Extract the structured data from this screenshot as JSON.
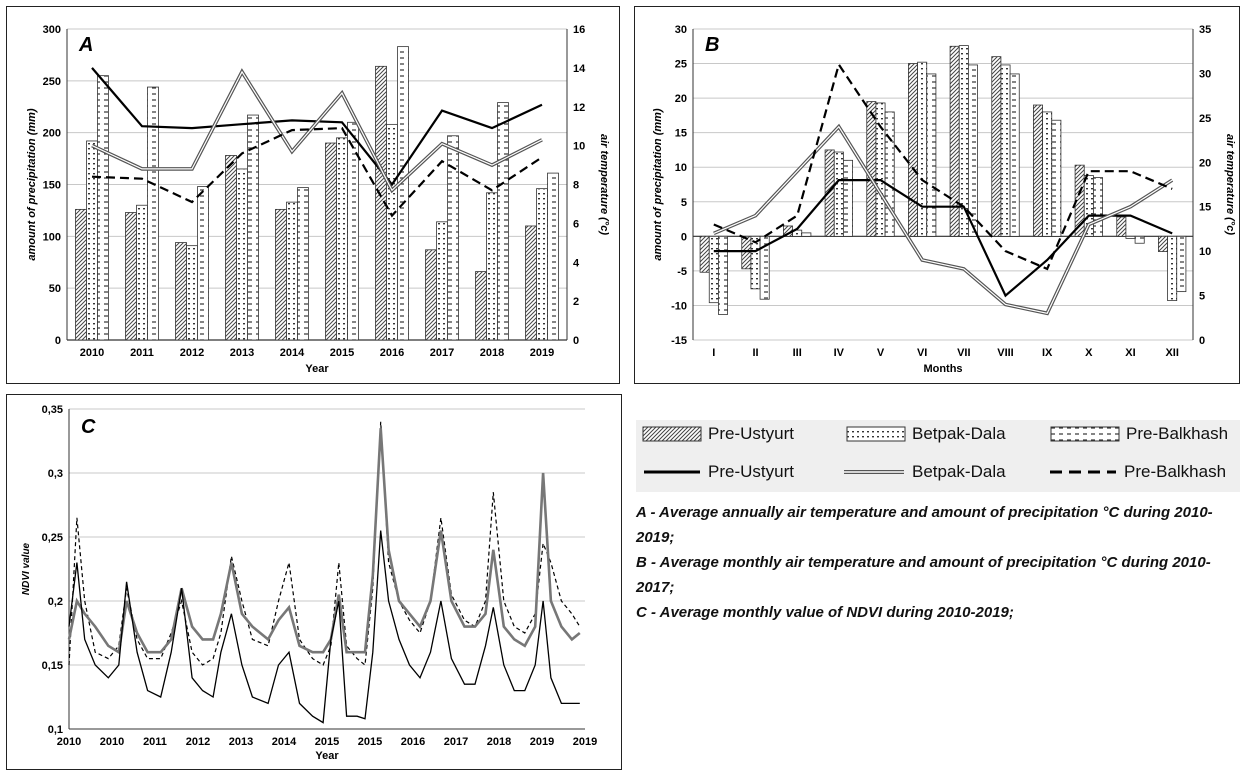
{
  "chart_data": [
    {
      "type": "bar",
      "panel_label": "A",
      "xlabel": "Year",
      "ylabel": "amount of precipitation (mm)",
      "y2label": "air temperature (°c)",
      "ylim": [
        0,
        300
      ],
      "y2lim": [
        0,
        16
      ],
      "yticks": [
        "0",
        "50",
        "100",
        "150",
        "200",
        "250",
        "300"
      ],
      "y2ticks": [
        "0",
        "2",
        "4",
        "6",
        "8",
        "10",
        "12",
        "14",
        "16"
      ],
      "categories": [
        "2010",
        "2011",
        "2012",
        "2013",
        "2014",
        "2015",
        "2016",
        "2017",
        "2018",
        "2019"
      ],
      "grid": true,
      "bar_series": [
        {
          "name": "Pre-Ustyurt",
          "values": [
            126,
            123,
            94,
            178,
            126,
            190,
            264,
            87,
            66,
            110
          ]
        },
        {
          "name": "Betpak-Dala",
          "values": [
            192,
            130,
            91,
            165,
            133,
            195,
            208,
            114,
            142,
            146
          ]
        },
        {
          "name": "Pre-Balkhash",
          "values": [
            255,
            244,
            148,
            217,
            147,
            210,
            283,
            197,
            229,
            161
          ]
        }
      ],
      "line_series": [
        {
          "name": "Pre-Ustyurt",
          "values": [
            14.0,
            11.0,
            10.9,
            11.1,
            11.3,
            11.2,
            8.0,
            11.8,
            10.9,
            12.1
          ]
        },
        {
          "name": "Betpak-Dala",
          "values": [
            10.0,
            8.8,
            8.8,
            13.8,
            9.7,
            12.7,
            7.7,
            10.1,
            9.0,
            10.3
          ]
        },
        {
          "name": "Pre-Balkhash",
          "values": [
            8.4,
            8.3,
            7.1,
            9.6,
            10.8,
            10.9,
            6.4,
            9.2,
            7.7,
            9.4
          ]
        }
      ]
    },
    {
      "type": "bar",
      "panel_label": "B",
      "xlabel": "Months",
      "ylabel": "amount of precipitation (mm)",
      "y2label": "air temperature (°c)",
      "ylim": [
        -15,
        30
      ],
      "y2lim": [
        0,
        35
      ],
      "yticks": [
        "-15",
        "-10",
        "-5",
        "0",
        "5",
        "10",
        "15",
        "20",
        "25",
        "30"
      ],
      "y2ticks": [
        "0",
        "5",
        "10",
        "15",
        "20",
        "25",
        "30",
        "35"
      ],
      "categories": [
        "I",
        "II",
        "III",
        "IV",
        "V",
        "VI",
        "VII",
        "VIII",
        "IX",
        "X",
        "XI",
        "XII"
      ],
      "grid": true,
      "bar_series": [
        {
          "name": "Pre-Ustyurt",
          "values": [
            -5.2,
            -4.7,
            1.5,
            12.5,
            19.5,
            25,
            27.5,
            26,
            19,
            10.3,
            2.8,
            -2.2
          ]
        },
        {
          "name": "Betpak-Dala",
          "values": [
            -9.6,
            -7.6,
            0.9,
            12.2,
            19.3,
            25.2,
            27.6,
            24.8,
            18,
            8.8,
            -0.3,
            -9.3
          ]
        },
        {
          "name": "Pre-Balkhash",
          "values": [
            -11.3,
            -9.1,
            0.5,
            11,
            18,
            23.5,
            24.8,
            23.5,
            16.8,
            8.5,
            -1,
            -8
          ]
        }
      ],
      "line_series": [
        {
          "name": "Pre-Ustyurt",
          "values": [
            10,
            10,
            12.5,
            18,
            18,
            15,
            15,
            5,
            9,
            14,
            14,
            12
          ]
        },
        {
          "name": "Betpak-Dala",
          "values": [
            12,
            14,
            19,
            24,
            16.5,
            9,
            8,
            4,
            3,
            13,
            15,
            18
          ]
        },
        {
          "name": "Pre-Balkhash",
          "values": [
            13,
            11,
            14,
            31,
            24,
            18,
            15,
            10,
            8,
            19,
            19,
            17
          ]
        }
      ]
    },
    {
      "type": "line",
      "panel_label": "C",
      "xlabel": "Year",
      "ylabel": "NDVI value",
      "ylim": [
        0.1,
        0.35
      ],
      "yticks": [
        "0,1",
        "0,15",
        "0,2",
        "0,25",
        "0,3",
        "0,35"
      ],
      "xticks": [
        "2010",
        "2010",
        "2011",
        "2012",
        "2013",
        "2014",
        "2015",
        "2015",
        "2016",
        "2017",
        "2018",
        "2019",
        "2019"
      ],
      "grid": true,
      "series": [
        {
          "name": "Pre-Ustyurt",
          "points": [
            [
              2010.0,
              0.18
            ],
            [
              2010.15,
              0.23
            ],
            [
              2010.3,
              0.17
            ],
            [
              2010.5,
              0.15
            ],
            [
              2010.75,
              0.14
            ],
            [
              2010.95,
              0.15
            ],
            [
              2011.1,
              0.215
            ],
            [
              2011.3,
              0.16
            ],
            [
              2011.5,
              0.13
            ],
            [
              2011.75,
              0.125
            ],
            [
              2011.95,
              0.16
            ],
            [
              2012.15,
              0.21
            ],
            [
              2012.35,
              0.14
            ],
            [
              2012.55,
              0.13
            ],
            [
              2012.75,
              0.125
            ],
            [
              2012.9,
              0.16
            ],
            [
              2013.1,
              0.19
            ],
            [
              2013.3,
              0.15
            ],
            [
              2013.5,
              0.125
            ],
            [
              2013.8,
              0.12
            ],
            [
              2014.0,
              0.15
            ],
            [
              2014.2,
              0.16
            ],
            [
              2014.4,
              0.12
            ],
            [
              2014.65,
              0.11
            ],
            [
              2014.85,
              0.105
            ],
            [
              2015.0,
              0.17
            ],
            [
              2015.15,
              0.2
            ],
            [
              2015.3,
              0.11
            ],
            [
              2015.5,
              0.11
            ],
            [
              2015.65,
              0.108
            ],
            [
              2015.8,
              0.16
            ],
            [
              2015.95,
              0.255
            ],
            [
              2016.1,
              0.2
            ],
            [
              2016.3,
              0.17
            ],
            [
              2016.5,
              0.15
            ],
            [
              2016.7,
              0.14
            ],
            [
              2016.9,
              0.16
            ],
            [
              2017.1,
              0.2
            ],
            [
              2017.3,
              0.155
            ],
            [
              2017.55,
              0.135
            ],
            [
              2017.75,
              0.135
            ],
            [
              2017.95,
              0.165
            ],
            [
              2018.1,
              0.195
            ],
            [
              2018.3,
              0.15
            ],
            [
              2018.5,
              0.13
            ],
            [
              2018.7,
              0.13
            ],
            [
              2018.9,
              0.15
            ],
            [
              2019.05,
              0.2
            ],
            [
              2019.2,
              0.14
            ],
            [
              2019.4,
              0.12
            ],
            [
              2019.6,
              0.12
            ],
            [
              2019.75,
              0.12
            ]
          ]
        },
        {
          "name": "Betpak-Dala",
          "points": [
            [
              2010.0,
              0.17
            ],
            [
              2010.15,
              0.2
            ],
            [
              2010.3,
              0.19
            ],
            [
              2010.5,
              0.18
            ],
            [
              2010.75,
              0.165
            ],
            [
              2010.95,
              0.16
            ],
            [
              2011.1,
              0.2
            ],
            [
              2011.3,
              0.175
            ],
            [
              2011.5,
              0.16
            ],
            [
              2011.75,
              0.16
            ],
            [
              2011.95,
              0.17
            ],
            [
              2012.15,
              0.21
            ],
            [
              2012.35,
              0.18
            ],
            [
              2012.55,
              0.17
            ],
            [
              2012.75,
              0.17
            ],
            [
              2012.9,
              0.19
            ],
            [
              2013.1,
              0.23
            ],
            [
              2013.3,
              0.19
            ],
            [
              2013.5,
              0.18
            ],
            [
              2013.8,
              0.17
            ],
            [
              2014.0,
              0.185
            ],
            [
              2014.2,
              0.195
            ],
            [
              2014.4,
              0.165
            ],
            [
              2014.65,
              0.16
            ],
            [
              2014.85,
              0.16
            ],
            [
              2015.0,
              0.17
            ],
            [
              2015.15,
              0.205
            ],
            [
              2015.3,
              0.16
            ],
            [
              2015.5,
              0.16
            ],
            [
              2015.65,
              0.16
            ],
            [
              2015.8,
              0.22
            ],
            [
              2015.95,
              0.335
            ],
            [
              2016.1,
              0.24
            ],
            [
              2016.3,
              0.2
            ],
            [
              2016.5,
              0.19
            ],
            [
              2016.7,
              0.18
            ],
            [
              2016.9,
              0.2
            ],
            [
              2017.1,
              0.255
            ],
            [
              2017.3,
              0.2
            ],
            [
              2017.55,
              0.18
            ],
            [
              2017.75,
              0.18
            ],
            [
              2017.95,
              0.19
            ],
            [
              2018.1,
              0.24
            ],
            [
              2018.3,
              0.18
            ],
            [
              2018.5,
              0.17
            ],
            [
              2018.7,
              0.165
            ],
            [
              2018.9,
              0.18
            ],
            [
              2019.05,
              0.3
            ],
            [
              2019.2,
              0.2
            ],
            [
              2019.4,
              0.18
            ],
            [
              2019.6,
              0.17
            ],
            [
              2019.75,
              0.175
            ]
          ]
        },
        {
          "name": "Pre-Balkhash",
          "points": [
            [
              2010.0,
              0.15
            ],
            [
              2010.15,
              0.265
            ],
            [
              2010.3,
              0.2
            ],
            [
              2010.5,
              0.16
            ],
            [
              2010.75,
              0.155
            ],
            [
              2010.95,
              0.165
            ],
            [
              2011.1,
              0.21
            ],
            [
              2011.3,
              0.17
            ],
            [
              2011.5,
              0.155
            ],
            [
              2011.75,
              0.155
            ],
            [
              2011.95,
              0.175
            ],
            [
              2012.15,
              0.2
            ],
            [
              2012.35,
              0.16
            ],
            [
              2012.55,
              0.15
            ],
            [
              2012.75,
              0.155
            ],
            [
              2012.9,
              0.175
            ],
            [
              2013.1,
              0.235
            ],
            [
              2013.3,
              0.2
            ],
            [
              2013.5,
              0.17
            ],
            [
              2013.8,
              0.165
            ],
            [
              2014.0,
              0.2
            ],
            [
              2014.2,
              0.23
            ],
            [
              2014.4,
              0.17
            ],
            [
              2014.65,
              0.155
            ],
            [
              2014.85,
              0.15
            ],
            [
              2015.0,
              0.165
            ],
            [
              2015.15,
              0.23
            ],
            [
              2015.3,
              0.165
            ],
            [
              2015.5,
              0.155
            ],
            [
              2015.65,
              0.15
            ],
            [
              2015.8,
              0.21
            ],
            [
              2015.95,
              0.34
            ],
            [
              2016.1,
              0.23
            ],
            [
              2016.3,
              0.2
            ],
            [
              2016.5,
              0.185
            ],
            [
              2016.7,
              0.175
            ],
            [
              2016.9,
              0.2
            ],
            [
              2017.1,
              0.265
            ],
            [
              2017.3,
              0.205
            ],
            [
              2017.55,
              0.185
            ],
            [
              2017.75,
              0.18
            ],
            [
              2017.95,
              0.2
            ],
            [
              2018.1,
              0.285
            ],
            [
              2018.3,
              0.2
            ],
            [
              2018.5,
              0.18
            ],
            [
              2018.7,
              0.175
            ],
            [
              2018.9,
              0.19
            ],
            [
              2019.05,
              0.245
            ],
            [
              2019.2,
              0.23
            ],
            [
              2019.4,
              0.2
            ],
            [
              2019.6,
              0.19
            ],
            [
              2019.75,
              0.18
            ]
          ]
        }
      ]
    }
  ],
  "legend": {
    "bars": [
      "Pre-Ustyurt",
      "Betpak-Dala",
      "Pre-Balkhash"
    ],
    "lines": [
      "Pre-Ustyurt",
      "Betpak-Dala",
      "Pre-Balkhash"
    ]
  },
  "captions": [
    "A  - Average annually air temperature and amount of precipitation °C during 2010-2019;",
    "B -   Average monthly air temperature and amount of precipitation °C during 2010-2017;",
    "C - Average monthly value of NDVI  during 2010-2019;"
  ]
}
